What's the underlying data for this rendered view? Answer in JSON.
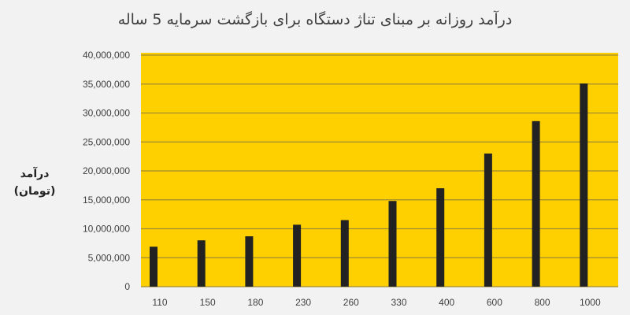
{
  "chart_data": {
    "type": "bar",
    "title": "درآمد روزانه بر مبنای تناژ دستگاه برای بازگشت سرمایه 5 ساله",
    "xlabel": "",
    "ylabel": "درآمد (تومان)",
    "ylabel_lines": [
      "درآمد",
      "(تومان)"
    ],
    "categories": [
      "110",
      "150",
      "180",
      "230",
      "260",
      "330",
      "400",
      "600",
      "800",
      "1000"
    ],
    "values": [
      6900000,
      8000000,
      8700000,
      10700000,
      11500000,
      14800000,
      17000000,
      23000000,
      28600000,
      35100000
    ],
    "ylim": [
      0,
      40000000
    ],
    "yticks": [
      0,
      5000000,
      10000000,
      15000000,
      20000000,
      25000000,
      30000000,
      35000000,
      40000000
    ],
    "ytick_labels": [
      "0",
      "5,000,000",
      "10,000,000",
      "15,000,000",
      "20,000,000",
      "25,000,000",
      "30,000,000",
      "35,000,000",
      "40,000,000"
    ],
    "grid": true,
    "legend": "none",
    "colors": {
      "plot_background": "#ffd000",
      "bar": "#222222",
      "grid": "#a08a30",
      "page_background": "#f2f2f2"
    }
  }
}
